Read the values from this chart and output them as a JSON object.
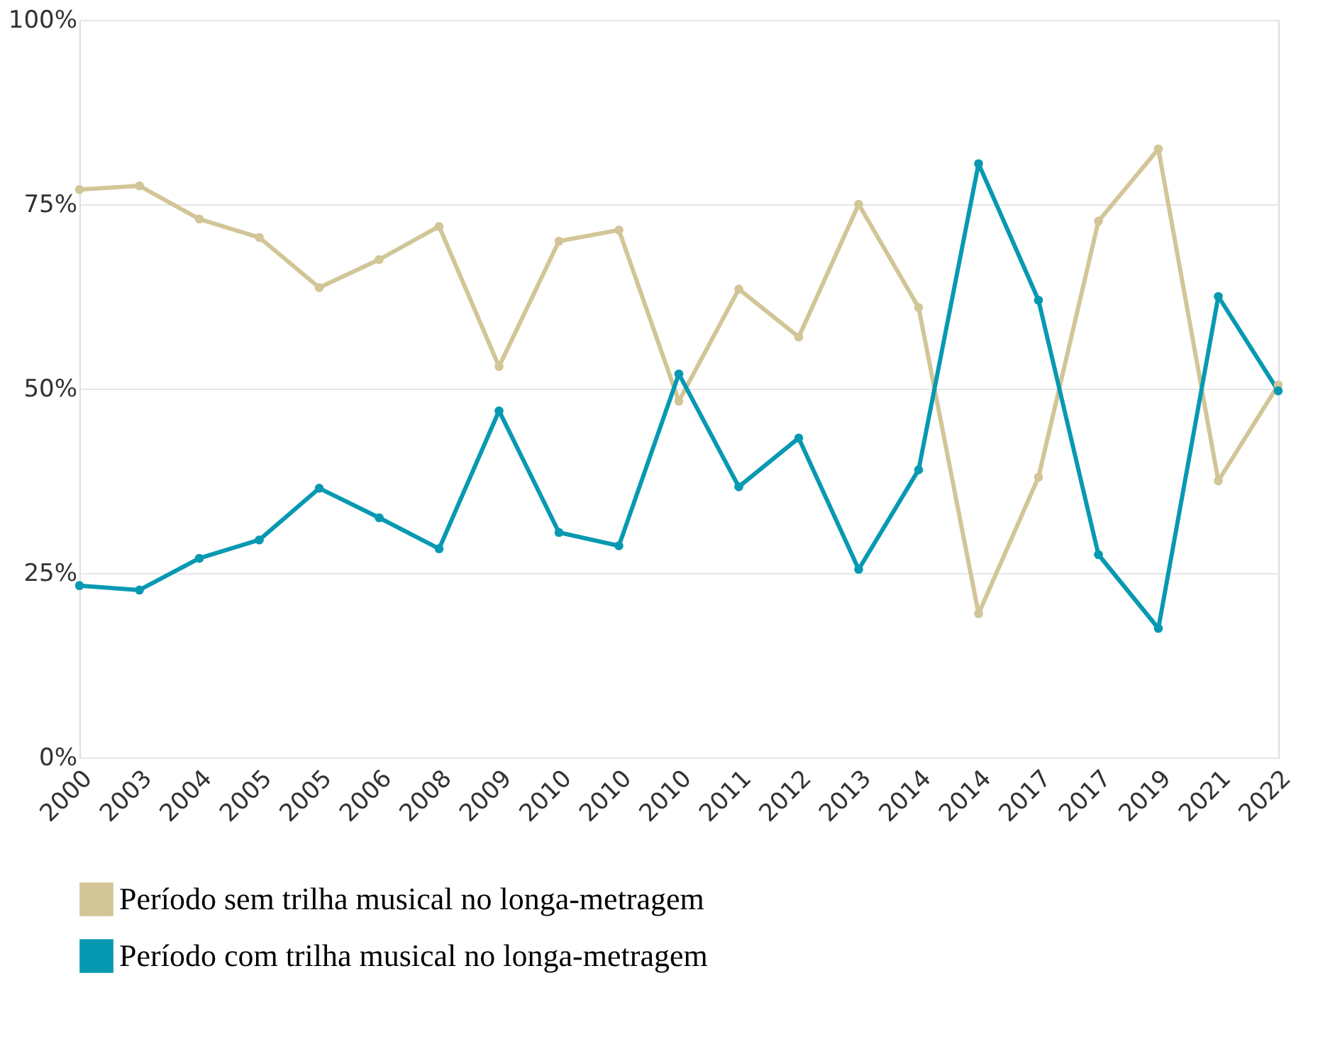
{
  "chart_data": {
    "type": "line",
    "categories": [
      "2000",
      "2003",
      "2004",
      "2005",
      "2005",
      "2006",
      "2008",
      "2009",
      "2010",
      "2010",
      "2010",
      "2011",
      "2012",
      "2013",
      "2014",
      "2014",
      "2017",
      "2017",
      "2019",
      "2021",
      "2022"
    ],
    "series": [
      {
        "name": "Período sem trilha musical no longa-metragem",
        "color": "#d2c597",
        "values": [
          77,
          77.5,
          73,
          70.5,
          63.7,
          67.5,
          72,
          53,
          70,
          71.5,
          48.3,
          63.5,
          57,
          75,
          61,
          19.5,
          38,
          72.7,
          82.5,
          37.5,
          50.5
        ]
      },
      {
        "name": "Período com trilha musical no longa-metragem",
        "color": "#0899b2",
        "values": [
          23.3,
          22.7,
          27,
          29.5,
          36.5,
          32.5,
          28.3,
          47,
          30.5,
          28.7,
          52,
          36.7,
          43.3,
          25.5,
          39,
          80.5,
          62,
          27.5,
          17.5,
          62.5,
          49.7
        ]
      }
    ],
    "ylim": [
      0,
      100
    ],
    "yticks": [
      {
        "value": 0,
        "label": "0%"
      },
      {
        "value": 25,
        "label": "25%"
      },
      {
        "value": 50,
        "label": "50%"
      },
      {
        "value": 75,
        "label": "75%"
      },
      {
        "value": 100,
        "label": "100%"
      }
    ],
    "grid": "y",
    "legend": "bottom",
    "marker": "circle",
    "line_style": "solid"
  }
}
